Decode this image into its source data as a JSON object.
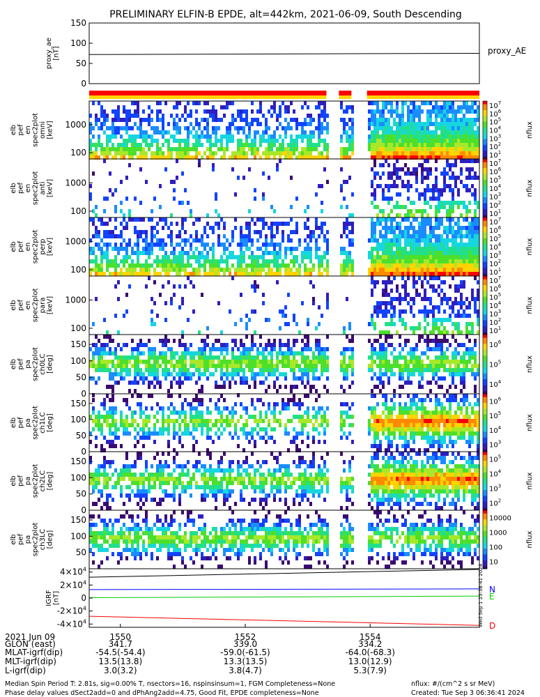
{
  "title": "PRELIMINARY ELFIN-B EPDE, alt=442km, 2021-06-09, South Descending",
  "chart_data": [
    {
      "type": "line",
      "panel": "proxy_ae",
      "ylabel": "proxy_ae\n[nT]",
      "legend": "proxy_AE",
      "ylim": [
        0,
        150
      ],
      "yticks": [
        "0",
        "50",
        "100",
        "150"
      ],
      "series": [
        {
          "x": [
            1549.5,
            1555.75
          ],
          "values": [
            72,
            75
          ]
        }
      ]
    },
    {
      "type": "heatmap",
      "panel": "elb pef en spec2plot omni",
      "ylabel": "elb\npef\nen\nspec2plot\nomni\n[keV]",
      "yscale": "log",
      "ylim": [
        60,
        7000
      ],
      "yticks": [
        "100",
        "1000"
      ],
      "colorbar": {
        "label": "nflux",
        "scale": "log",
        "ticks": [
          "10^1",
          "10^2",
          "10^3",
          "10^4",
          "10^5",
          "10^6",
          "10^7"
        ]
      }
    },
    {
      "type": "heatmap",
      "panel": "elb pef en spec2plot anti",
      "ylabel": "elb\npef\nen\nspec2plot\nanti\n[keV]",
      "yscale": "log",
      "ylim": [
        60,
        7000
      ],
      "yticks": [
        "100",
        "1000"
      ],
      "colorbar": {
        "label": "nflux",
        "scale": "log",
        "ticks": [
          "10^1",
          "10^2",
          "10^3",
          "10^4",
          "10^5",
          "10^6",
          "10^7"
        ]
      }
    },
    {
      "type": "heatmap",
      "panel": "elb pef en spec2plot perp",
      "ylabel": "elb\npef\nen\nspec2plot\nperp\n[keV]",
      "yscale": "log",
      "ylim": [
        60,
        7000
      ],
      "yticks": [
        "100",
        "1000"
      ],
      "colorbar": {
        "label": "nflux",
        "scale": "log",
        "ticks": [
          "10^1",
          "10^2",
          "10^3",
          "10^4",
          "10^5",
          "10^6",
          "10^7"
        ]
      }
    },
    {
      "type": "heatmap",
      "panel": "elb pef en spec2plot para",
      "ylabel": "elb\npef\nen\nspec2plot\npara\n[keV]",
      "yscale": "log",
      "ylim": [
        60,
        7000
      ],
      "yticks": [
        "100",
        "1000"
      ],
      "colorbar": {
        "label": "nflux",
        "scale": "log",
        "ticks": [
          "10^1",
          "10^2",
          "10^3",
          "10^4",
          "10^5",
          "10^6",
          "10^7"
        ]
      }
    },
    {
      "type": "heatmap",
      "panel": "elb pef pa spec2plot ch0LC",
      "ylabel": "elb\npef\npa\nspec2plot\nch0LC\n[deg]",
      "ylim": [
        0,
        180
      ],
      "yticks": [
        "0",
        "50",
        "100",
        "150"
      ],
      "colorbar": {
        "label": "nflux",
        "scale": "log",
        "ticks": [
          "10^4",
          "10^5",
          "10^6"
        ]
      }
    },
    {
      "type": "heatmap",
      "panel": "elb pef pa spec2plot ch1LC",
      "ylabel": "elb\npef\npa\nspec2plot\nch1LC\n[deg]",
      "ylim": [
        0,
        180
      ],
      "yticks": [
        "0",
        "50",
        "100",
        "150"
      ],
      "colorbar": {
        "label": "nflux",
        "scale": "log",
        "ticks": [
          "10^3",
          "10^4",
          "10^5",
          "10^6"
        ]
      }
    },
    {
      "type": "heatmap",
      "panel": "elb pef pa spec2plot ch2LC",
      "ylabel": "elb\npef\npa\nspec2plot\nch2LC\n[deg]",
      "ylim": [
        0,
        180
      ],
      "yticks": [
        "0",
        "50",
        "100",
        "150"
      ],
      "colorbar": {
        "label": "nflux",
        "scale": "log",
        "ticks": [
          "10^2",
          "10^3",
          "10^4",
          "10^5"
        ]
      }
    },
    {
      "type": "heatmap",
      "panel": "elb pef pa spec2plot ch3LC",
      "ylabel": "elb\npef\npa\nspec2plot\nch3LC\n[deg]",
      "ylim": [
        0,
        180
      ],
      "yticks": [
        "50",
        "100",
        "150"
      ],
      "colorbar": {
        "label": "nflux",
        "scale": "log",
        "ticks": [
          "10",
          "100",
          "1000",
          "10000"
        ]
      }
    },
    {
      "type": "line",
      "panel": "IGRF",
      "ylabel": "IGRF\n[nT]",
      "ylim": [
        -45000,
        45000
      ],
      "yticks": [
        "-4x10^4",
        "-2x10^4",
        "0",
        "2x10^4",
        "4x10^4"
      ],
      "x": [
        1549.5,
        1555.75
      ],
      "series": [
        {
          "name": "N",
          "color": "#0000ff",
          "values": [
            13000,
            14000
          ]
        },
        {
          "name": "E",
          "color": "#00cc00",
          "values": [
            500,
            3000
          ]
        },
        {
          "name": "D",
          "color": "#ff0000",
          "values": [
            -28000,
            -42000
          ]
        },
        {
          "color": "#000000",
          "values": [
            32000,
            44000
          ]
        }
      ]
    }
  ],
  "tti": "Wed Sep 1 23:38:41 2024",
  "xaxis": {
    "date": "2021 Jun 09",
    "ticks": [
      {
        "time": 1550,
        "label": "1550",
        "glon": "341.7",
        "mlat": "-54.5(-54.4)",
        "mlt": "13.5(13.8)",
        "l": "3.0(3.2)"
      },
      {
        "time": 1552,
        "label": "1552",
        "glon": "339.0",
        "mlat": "-59.0(-61.5)",
        "mlt": "13.3(13.5)",
        "l": "3.8(4.7)"
      },
      {
        "time": 1554,
        "label": "1554",
        "glon": "334.2",
        "mlat": "-64.0(-68.3)",
        "mlt": "13.0(12.9)",
        "l": "5.3(7.9)"
      }
    ],
    "row_labels": [
      "GLON (east)",
      "MLAT-igrf(dip)",
      "MLT-igrf(dip)",
      "L-igrf(dip)"
    ]
  },
  "footer": {
    "line1": "Median Spin Period T: 2.81s, sig=0.00% T, nsectors=16, nspinsinsum=1, FGM Completeness=None",
    "line2": "Phase delay values dSect2add=0 and dPhAng2add=4.75, Good Fit, EPDE completeness=None",
    "units": "nflux: #/(cm^2 s sr MeV)",
    "created": "Created: Tue Sep  3 06:36:41 2024"
  }
}
